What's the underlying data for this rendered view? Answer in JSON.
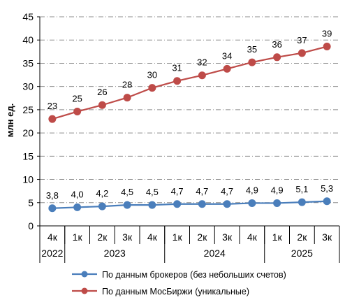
{
  "chart_data": {
    "type": "line",
    "ylabel": "млн ед.",
    "ylim": [
      0,
      45
    ],
    "yticks": [
      0,
      5,
      10,
      15,
      20,
      25,
      30,
      35,
      40,
      45
    ],
    "categories": [
      "4к",
      "1к",
      "2к",
      "3к",
      "4к",
      "1к",
      "2к",
      "3к",
      "4к",
      "1к",
      "2к",
      "3к"
    ],
    "year_groups": [
      {
        "label": "2022",
        "count": 1
      },
      {
        "label": "2023",
        "count": 4
      },
      {
        "label": "2024",
        "count": 4
      },
      {
        "label": "2025",
        "count": 3
      }
    ],
    "grid": "horizontal dash-dot",
    "legend_position": "bottom",
    "series": [
      {
        "name": "По данным брокеров (без небольших счетов)",
        "color": "#4a7ebb",
        "values": [
          3.8,
          4.0,
          4.2,
          4.5,
          4.5,
          4.7,
          4.7,
          4.7,
          4.9,
          4.9,
          5.1,
          5.3
        ],
        "labels": [
          "3,8",
          "4,0",
          "4,2",
          "4,5",
          "4,5",
          "4,7",
          "4,7",
          "4,7",
          "4,9",
          "4,9",
          "5,1",
          "5,3"
        ]
      },
      {
        "name": "По данным МосБиржи (уникальные)",
        "color": "#be4b48",
        "values": [
          23,
          24.6,
          26,
          27.6,
          29.7,
          31.2,
          32.4,
          33.8,
          35.2,
          36.3,
          37.2,
          38.6
        ],
        "labels": [
          "23",
          "25",
          "26",
          "28",
          "30",
          "31",
          "32",
          "34",
          "35",
          "36",
          "37",
          "39"
        ]
      }
    ]
  }
}
